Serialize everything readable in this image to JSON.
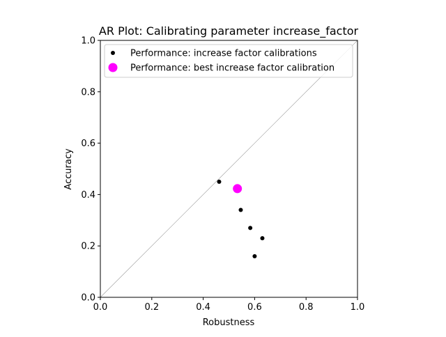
{
  "chart_data": {
    "type": "scatter",
    "title": "AR Plot: Calibrating parameter increase_factor",
    "xlabel": "Robustness",
    "ylabel": "Accuracy",
    "xlim": [
      0.0,
      1.0
    ],
    "ylim": [
      0.0,
      1.0
    ],
    "grid": false,
    "legend_position": "top-right",
    "x_ticks": [
      "0.0",
      "0.2",
      "0.4",
      "0.6",
      "0.8",
      "1.0"
    ],
    "y_ticks": [
      "0.0",
      "0.2",
      "0.4",
      "0.6",
      "0.8",
      "1.0"
    ],
    "reference_line": {
      "x": [
        0.0,
        1.0
      ],
      "y": [
        0.0,
        1.0
      ],
      "color": "#999999"
    },
    "series": [
      {
        "name": "Performance: increase factor calibrations",
        "color": "#000000",
        "marker": "circle-small",
        "points": [
          {
            "x": 0.462,
            "y": 0.45
          },
          {
            "x": 0.546,
            "y": 0.34
          },
          {
            "x": 0.583,
            "y": 0.27
          },
          {
            "x": 0.63,
            "y": 0.23
          },
          {
            "x": 0.6,
            "y": 0.16
          }
        ]
      },
      {
        "name": "Performance: best increase factor calibration",
        "color": "#ff00ff",
        "marker": "circle-large",
        "points": [
          {
            "x": 0.533,
            "y": 0.423
          }
        ]
      }
    ]
  }
}
